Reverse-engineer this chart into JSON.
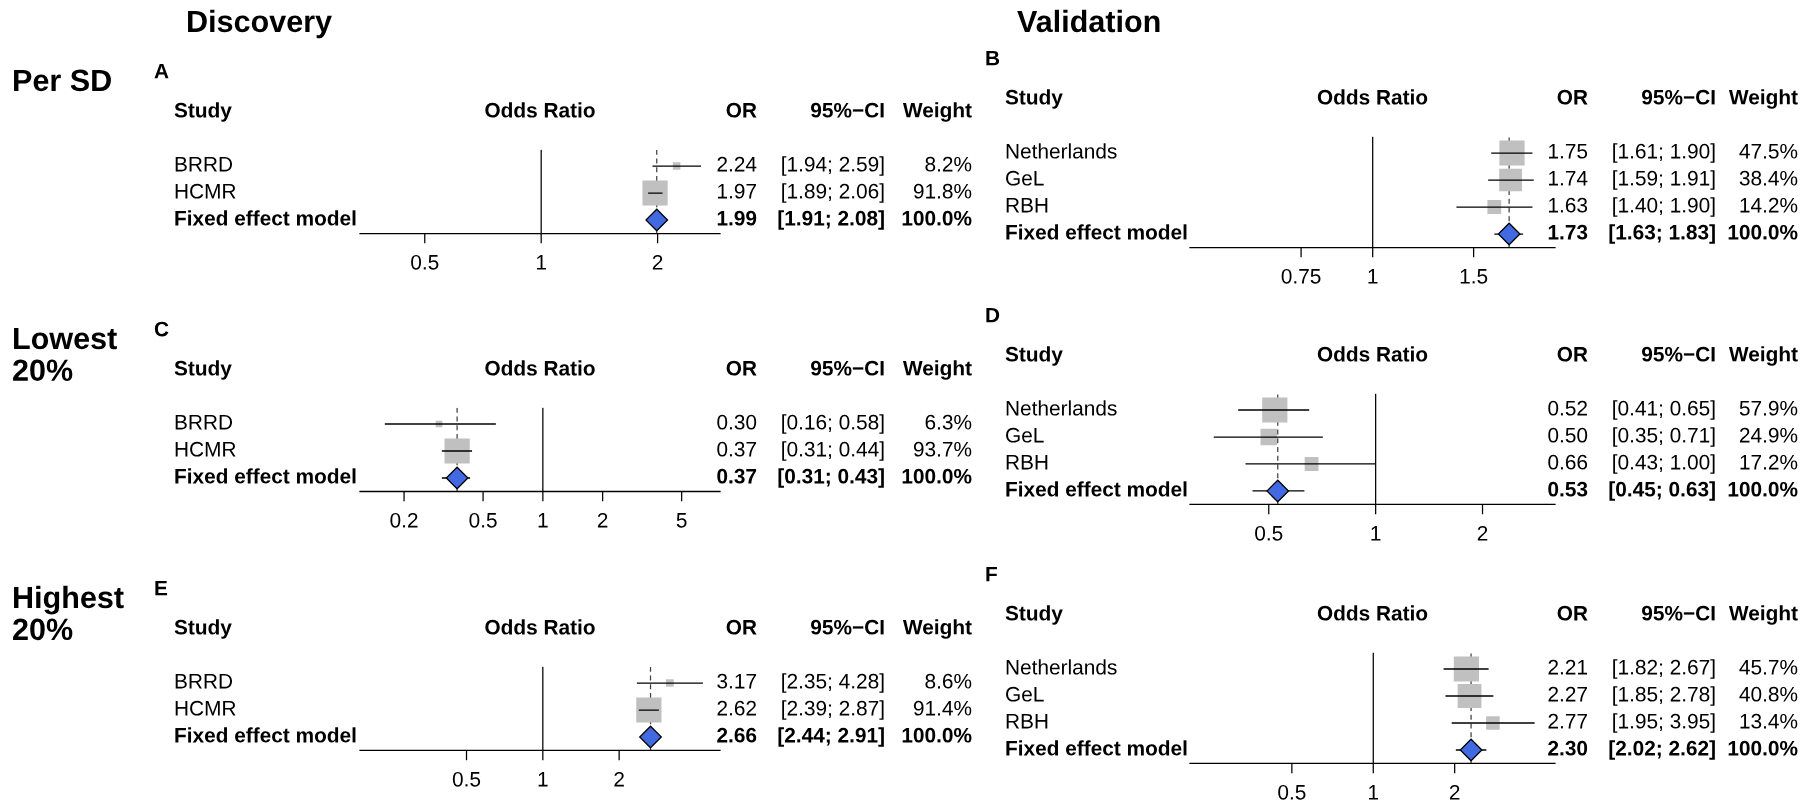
{
  "chart_data": [
    {
      "type": "scatter",
      "orientation": "horizontal",
      "title": "A",
      "subtitle": "Per SD",
      "xlabel": "Odds Ratio",
      "ylabel": "Study",
      "annotations": [
        "OR",
        "95%−CI",
        "Weight",
        "Discovery"
      ],
      "categories": [
        "BRRD",
        "HCMR",
        "Fixed effect model"
      ],
      "log": "x",
      "xlim": [
        0.34,
        2.9
      ],
      "xticks": [
        0.5,
        1,
        2
      ],
      "ref_lines": [
        {
          "axis": "x",
          "value": 1,
          "color": "#000000"
        },
        {
          "axis": "x",
          "value": 1.99,
          "line_style": "dashed",
          "color": "#404040"
        }
      ],
      "series": [
        {
          "type": "bubble",
          "marker": "square",
          "color": "#c0c0c0",
          "values": [
            2.24,
            1.97,
            null
          ],
          "errors": [
            [
              1.94,
              2.59
            ],
            [
              1.89,
              2.06
            ],
            null
          ],
          "sizes": [
            0.089,
            1,
            null
          ],
          "value_labels": [
            [
              "2.24",
              "[1.94; 2.59]",
              "8.2%"
            ],
            [
              "1.97",
              "[1.89; 2.06]",
              "91.8%"
            ],
            null
          ]
        },
        {
          "type": "scatter",
          "marker": "diamond",
          "color": "#4169e1",
          "values": [
            null,
            null,
            1.99
          ],
          "errors": [
            null,
            null,
            [
              1.91,
              2.08
            ]
          ],
          "value_labels": [
            null,
            null,
            [
              "1.99",
              "[1.91; 2.08]",
              "100.0%"
            ]
          ]
        }
      ]
    },
    {
      "type": "scatter",
      "orientation": "horizontal",
      "title": "B",
      "xlabel": "Odds Ratio",
      "ylabel": "Study",
      "annotations": [
        "OR",
        "95%−CI",
        "Weight",
        "Validation"
      ],
      "categories": [
        "Netherlands",
        "GeL",
        "RBH",
        "Fixed effect model"
      ],
      "log": "x",
      "xlim": [
        0.48,
        2.08
      ],
      "xticks": [
        0.75,
        1,
        1.5
      ],
      "ref_lines": [
        {
          "axis": "x",
          "value": 1,
          "color": "#000000"
        },
        {
          "axis": "x",
          "value": 1.73,
          "line_style": "dashed",
          "color": "#404040"
        }
      ],
      "series": [
        {
          "type": "bubble",
          "marker": "square",
          "color": "#c0c0c0",
          "values": [
            1.75,
            1.74,
            1.63,
            null
          ],
          "errors": [
            [
              1.61,
              1.9
            ],
            [
              1.59,
              1.91
            ],
            [
              1.4,
              1.9
            ],
            null
          ],
          "sizes": [
            1,
            0.81,
            0.3,
            null
          ],
          "value_labels": [
            [
              "1.75",
              "[1.61; 1.90]",
              "47.5%"
            ],
            [
              "1.74",
              "[1.59; 1.91]",
              "38.4%"
            ],
            [
              "1.63",
              "[1.40; 1.90]",
              "14.2%"
            ],
            null
          ]
        },
        {
          "type": "scatter",
          "marker": "diamond",
          "color": "#4169e1",
          "values": [
            null,
            null,
            null,
            1.73
          ],
          "errors": [
            null,
            null,
            null,
            [
              1.63,
              1.83
            ]
          ],
          "value_labels": [
            null,
            null,
            null,
            [
              "1.73",
              "[1.63; 1.83]",
              "100.0%"
            ]
          ]
        }
      ]
    },
    {
      "type": "scatter",
      "orientation": "horizontal",
      "title": "C",
      "subtitle": "Lowest\n20%",
      "xlabel": "Odds Ratio",
      "ylabel": "Study",
      "annotations": [
        "OR",
        "95%−CI",
        "Weight"
      ],
      "categories": [
        "BRRD",
        "HCMR",
        "Fixed effect model"
      ],
      "log": "x",
      "xlim": [
        0.12,
        7.8
      ],
      "xticks": [
        0.2,
        0.5,
        1,
        2,
        5
      ],
      "ref_lines": [
        {
          "axis": "x",
          "value": 1,
          "color": "#000000"
        },
        {
          "axis": "x",
          "value": 0.37,
          "line_style": "dashed",
          "color": "#404040"
        }
      ],
      "series": [
        {
          "type": "bubble",
          "marker": "square",
          "color": "#c0c0c0",
          "values": [
            0.3,
            0.37,
            null
          ],
          "errors": [
            [
              0.16,
              0.58
            ],
            [
              0.31,
              0.44
            ],
            null
          ],
          "sizes": [
            0.067,
            1,
            null
          ],
          "value_labels": [
            [
              "0.30",
              "[0.16; 0.58]",
              "6.3%"
            ],
            [
              "0.37",
              "[0.31; 0.44]",
              "93.7%"
            ],
            null
          ]
        },
        {
          "type": "scatter",
          "marker": "diamond",
          "color": "#4169e1",
          "values": [
            null,
            null,
            0.37
          ],
          "errors": [
            null,
            null,
            [
              0.31,
              0.43
            ]
          ],
          "value_labels": [
            null,
            null,
            [
              "0.37",
              "[0.31; 0.43]",
              "100.0%"
            ]
          ]
        }
      ]
    },
    {
      "type": "scatter",
      "orientation": "horizontal",
      "title": "D",
      "xlabel": "Odds Ratio",
      "ylabel": "Study",
      "annotations": [
        "OR",
        "95%−CI",
        "Weight"
      ],
      "categories": [
        "Netherlands",
        "GeL",
        "RBH",
        "Fixed effect model"
      ],
      "log": "x",
      "xlim": [
        0.3,
        3.2
      ],
      "xticks": [
        0.5,
        1,
        2
      ],
      "ref_lines": [
        {
          "axis": "x",
          "value": 1,
          "color": "#000000"
        },
        {
          "axis": "x",
          "value": 0.53,
          "line_style": "dashed",
          "color": "#404040"
        }
      ],
      "series": [
        {
          "type": "bubble",
          "marker": "square",
          "color": "#c0c0c0",
          "values": [
            0.52,
            0.5,
            0.66,
            null
          ],
          "errors": [
            [
              0.41,
              0.65
            ],
            [
              0.35,
              0.71
            ],
            [
              0.43,
              1.0
            ],
            null
          ],
          "sizes": [
            1,
            0.43,
            0.3,
            null
          ],
          "value_labels": [
            [
              "0.52",
              "[0.41; 0.65]",
              "57.9%"
            ],
            [
              "0.50",
              "[0.35; 0.71]",
              "24.9%"
            ],
            [
              "0.66",
              "[0.43; 1.00]",
              "17.2%"
            ],
            null
          ]
        },
        {
          "type": "scatter",
          "marker": "diamond",
          "color": "#4169e1",
          "values": [
            null,
            null,
            null,
            0.53
          ],
          "errors": [
            null,
            null,
            null,
            [
              0.45,
              0.63
            ]
          ],
          "value_labels": [
            null,
            null,
            null,
            [
              "0.53",
              "[0.45; 0.63]",
              "100.0%"
            ]
          ]
        }
      ]
    },
    {
      "type": "scatter",
      "orientation": "horizontal",
      "title": "E",
      "subtitle": "Highest\n20%",
      "xlabel": "Odds Ratio",
      "ylabel": "Study",
      "annotations": [
        "OR",
        "95%−CI",
        "Weight"
      ],
      "categories": [
        "BRRD",
        "HCMR",
        "Fixed effect model"
      ],
      "log": "x",
      "xlim": [
        0.19,
        5.0
      ],
      "xticks": [
        0.5,
        1,
        2
      ],
      "ref_lines": [
        {
          "axis": "x",
          "value": 1,
          "color": "#000000"
        },
        {
          "axis": "x",
          "value": 2.66,
          "line_style": "dashed",
          "color": "#404040"
        }
      ],
      "series": [
        {
          "type": "bubble",
          "marker": "square",
          "color": "#c0c0c0",
          "values": [
            3.17,
            2.62,
            null
          ],
          "errors": [
            [
              2.35,
              4.28
            ],
            [
              2.39,
              2.87
            ],
            null
          ],
          "sizes": [
            0.094,
            1,
            null
          ],
          "value_labels": [
            [
              "3.17",
              "[2.35; 4.28]",
              "8.6%"
            ],
            [
              "2.62",
              "[2.39; 2.87]",
              "91.4%"
            ],
            null
          ]
        },
        {
          "type": "scatter",
          "marker": "diamond",
          "color": "#4169e1",
          "values": [
            null,
            null,
            2.66
          ],
          "errors": [
            null,
            null,
            [
              2.44,
              2.91
            ]
          ],
          "value_labels": [
            null,
            null,
            [
              "2.66",
              "[2.44; 2.91]",
              "100.0%"
            ]
          ]
        }
      ]
    },
    {
      "type": "scatter",
      "orientation": "horizontal",
      "title": "F",
      "xlabel": "Odds Ratio",
      "ylabel": "Study",
      "annotations": [
        "OR",
        "95%−CI",
        "Weight"
      ],
      "categories": [
        "Netherlands",
        "GeL",
        "RBH",
        "Fixed effect model"
      ],
      "log": "x",
      "xlim": [
        0.21,
        4.7
      ],
      "xticks": [
        0.5,
        1,
        2
      ],
      "ref_lines": [
        {
          "axis": "x",
          "value": 1,
          "color": "#000000"
        },
        {
          "axis": "x",
          "value": 2.3,
          "line_style": "dashed",
          "color": "#404040"
        }
      ],
      "series": [
        {
          "type": "bubble",
          "marker": "square",
          "color": "#c0c0c0",
          "values": [
            2.21,
            2.27,
            2.77,
            null
          ],
          "errors": [
            [
              1.82,
              2.67
            ],
            [
              1.85,
              2.78
            ],
            [
              1.95,
              3.95
            ],
            null
          ],
          "sizes": [
            1,
            0.89,
            0.29,
            null
          ],
          "value_labels": [
            [
              "2.21",
              "[1.82; 2.67]",
              "45.7%"
            ],
            [
              "2.27",
              "[1.85; 2.78]",
              "40.8%"
            ],
            [
              "2.77",
              "[1.95; 3.95]",
              "13.4%"
            ],
            null
          ]
        },
        {
          "type": "scatter",
          "marker": "diamond",
          "color": "#4169e1",
          "values": [
            null,
            null,
            null,
            2.3
          ],
          "errors": [
            null,
            null,
            null,
            [
              2.02,
              2.62
            ]
          ],
          "value_labels": [
            null,
            null,
            null,
            [
              "2.30",
              "[2.02; 2.62]",
              "100.0%"
            ]
          ]
        }
      ]
    }
  ]
}
